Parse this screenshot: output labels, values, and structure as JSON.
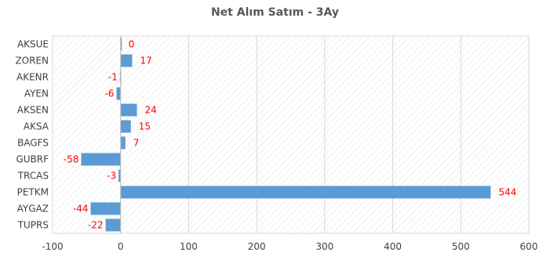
{
  "chart_data": {
    "type": "bar",
    "orientation": "horizontal",
    "title": "Net Alım Satım - 3Ay",
    "categories": [
      "AKSUE",
      "ZOREN",
      "AKENR",
      "AYEN",
      "AKSEN",
      "AKSA",
      "BAGFS",
      "GUBRF",
      "TRCAS",
      "PETKM",
      "AYGAZ",
      "TUPRS"
    ],
    "values": [
      0,
      17,
      -1,
      -6,
      24,
      15,
      7,
      -58,
      -3,
      544,
      -44,
      -22
    ],
    "xlim": [
      -100,
      600
    ],
    "xticks": [
      -100,
      0,
      100,
      200,
      300,
      400,
      500,
      600
    ],
    "xlabel": "",
    "ylabel": "",
    "grid": "vertical",
    "bar_color": "#5b9bd5",
    "label_color": "#ff0000",
    "plot_background": "hatched"
  }
}
